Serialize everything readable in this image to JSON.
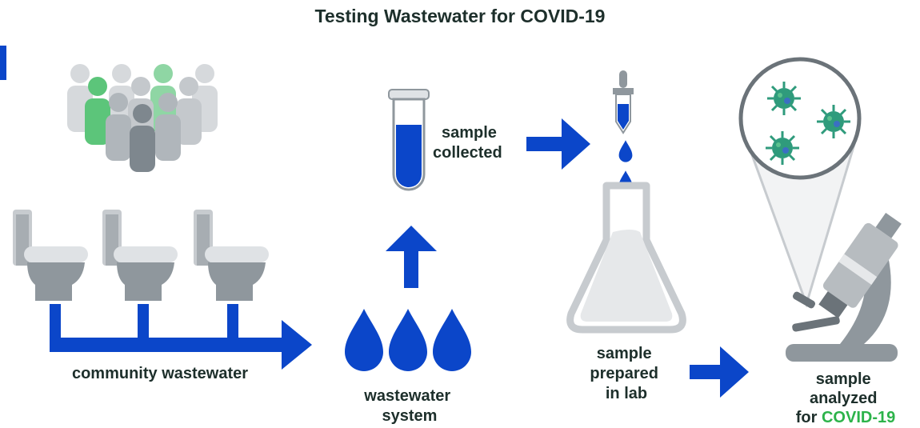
{
  "title": "Testing Wastewater for COVID-19",
  "steps": [
    {
      "lines": [
        "community wastewater"
      ]
    },
    {
      "lines": [
        "wastewater",
        "system"
      ]
    },
    {
      "lines": [
        "sample",
        "collected"
      ]
    },
    {
      "lines": [
        "sample",
        "prepared",
        "in lab"
      ]
    },
    {
      "lines": [
        "sample",
        "analyzed"
      ],
      "prefix": "for",
      "highlight": "COVID-19"
    }
  ]
}
